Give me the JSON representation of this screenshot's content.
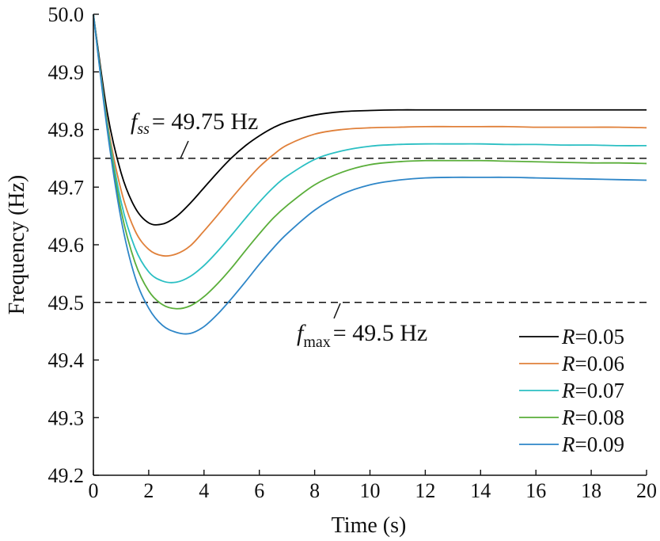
{
  "chart_data": {
    "type": "line",
    "xlabel": "Time (s)",
    "ylabel": "Frequency (Hz)",
    "xlim": [
      0,
      20
    ],
    "ylim": [
      49.2,
      50.0
    ],
    "x_ticks": [
      "0",
      "2",
      "4",
      "6",
      "8",
      "10",
      "12",
      "14",
      "16",
      "18",
      "20"
    ],
    "y_ticks": [
      "49.2",
      "49.3",
      "49.4",
      "49.5",
      "49.6",
      "49.7",
      "49.8",
      "49.9",
      "50.0"
    ],
    "grid": false,
    "legend_position": "bottom-right",
    "reference_lines": [
      {
        "y": 49.75,
        "style": "dashed",
        "label_var": "f",
        "label_sub": "ss",
        "label_value": "= 49.75 Hz"
      },
      {
        "y": 49.5,
        "style": "dashed",
        "label_var": "f",
        "label_sub": "max",
        "label_value": "= 49.5 Hz"
      }
    ],
    "x": [
      0,
      0.5,
      1,
      1.5,
      2,
      2.5,
      3,
      3.5,
      4,
      4.5,
      5,
      5.5,
      6,
      6.5,
      7,
      8,
      9,
      10,
      11,
      12,
      13,
      14,
      15,
      16,
      17,
      18,
      19,
      20
    ],
    "series": [
      {
        "name_var": "R",
        "name_value": "=0.05",
        "color": "#000000",
        "values": [
          50.0,
          49.83,
          49.725,
          49.665,
          49.638,
          49.636,
          49.649,
          49.672,
          49.699,
          49.726,
          49.751,
          49.772,
          49.789,
          49.803,
          49.813,
          49.825,
          49.831,
          49.833,
          49.834,
          49.834,
          49.834,
          49.834,
          49.834,
          49.834,
          49.834,
          49.834,
          49.834,
          49.834
        ]
      },
      {
        "name_var": "R",
        "name_value": "=0.06",
        "color": "#E0803A",
        "values": [
          50.0,
          49.815,
          49.695,
          49.625,
          49.592,
          49.581,
          49.584,
          49.598,
          49.624,
          49.652,
          49.681,
          49.709,
          49.735,
          49.756,
          49.773,
          49.792,
          49.8,
          49.803,
          49.804,
          49.805,
          49.805,
          49.805,
          49.805,
          49.804,
          49.804,
          49.804,
          49.804,
          49.803
        ]
      },
      {
        "name_var": "R",
        "name_value": "=0.07",
        "color": "#2BBFC3",
        "values": [
          50.0,
          49.81,
          49.675,
          49.595,
          49.553,
          49.537,
          49.535,
          49.545,
          49.564,
          49.589,
          49.617,
          49.646,
          49.674,
          49.699,
          49.719,
          49.748,
          49.763,
          49.771,
          49.774,
          49.775,
          49.775,
          49.775,
          49.774,
          49.774,
          49.773,
          49.773,
          49.772,
          49.772
        ]
      },
      {
        "name_var": "R",
        "name_value": "=0.08",
        "color": "#5AAE3A",
        "values": [
          50.0,
          49.805,
          49.66,
          49.57,
          49.52,
          49.496,
          49.489,
          49.494,
          49.51,
          49.533,
          49.56,
          49.59,
          49.619,
          49.646,
          49.668,
          49.704,
          49.726,
          49.739,
          49.744,
          49.746,
          49.746,
          49.746,
          49.745,
          49.744,
          49.743,
          49.742,
          49.742,
          49.741
        ]
      },
      {
        "name_var": "R",
        "name_value": "=0.09",
        "color": "#2E86C8",
        "values": [
          50.0,
          49.8,
          49.645,
          49.545,
          49.49,
          49.46,
          49.448,
          49.446,
          49.458,
          49.48,
          49.507,
          49.536,
          49.566,
          49.594,
          49.619,
          49.66,
          49.688,
          49.704,
          49.712,
          49.716,
          49.717,
          49.717,
          49.717,
          49.716,
          49.715,
          49.714,
          49.713,
          49.712
        ]
      }
    ]
  }
}
